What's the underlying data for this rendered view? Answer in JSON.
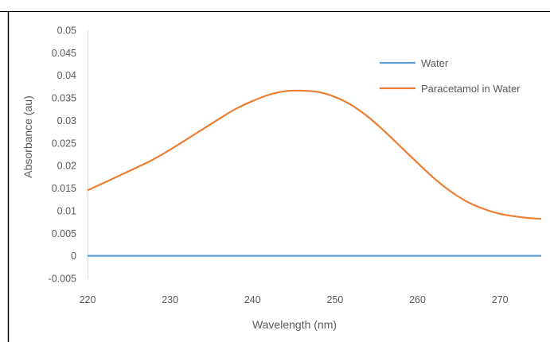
{
  "chart_data": {
    "type": "line",
    "title": "",
    "xlabel": "Wavelength (nm)",
    "ylabel": "Absorbance (au)",
    "xlim": [
      220,
      275
    ],
    "ylim": [
      -0.005,
      0.05
    ],
    "x_ticks": [
      220,
      230,
      240,
      250,
      260,
      270
    ],
    "x_tick_labels": [
      "220",
      "230",
      "240",
      "250",
      "260",
      "270"
    ],
    "y_ticks": [
      -0.005,
      0,
      0.005,
      0.01,
      0.015,
      0.02,
      0.025,
      0.03,
      0.035,
      0.04,
      0.045,
      0.05
    ],
    "y_tick_labels": [
      "-0.005",
      "0",
      "0.005",
      "0.01",
      "0.015",
      "0.02",
      "0.025",
      "0.03",
      "0.035",
      "0.04",
      "0.045",
      "0.05"
    ],
    "grid": false,
    "legend_position": "top-right",
    "series": [
      {
        "name": "Water",
        "color": "#5b9bd5",
        "x": [
          220,
          275
        ],
        "y": [
          0,
          0
        ]
      },
      {
        "name": "Paracetamol in Water",
        "color": "#ed7d31",
        "x": [
          220,
          222,
          224,
          226,
          228,
          230,
          232,
          234,
          236,
          238,
          240,
          242,
          244,
          246,
          248,
          250,
          252,
          254,
          256,
          258,
          260,
          262,
          264,
          266,
          268,
          270,
          272,
          274,
          275
        ],
        "y": [
          0.0145,
          0.0162,
          0.0179,
          0.0196,
          0.0214,
          0.0235,
          0.0258,
          0.0281,
          0.0304,
          0.0326,
          0.0343,
          0.0357,
          0.0365,
          0.0366,
          0.0363,
          0.0352,
          0.0334,
          0.0308,
          0.0276,
          0.0241,
          0.0206,
          0.0172,
          0.0143,
          0.012,
          0.0104,
          0.0093,
          0.0087,
          0.0083,
          0.0082
        ]
      }
    ]
  }
}
